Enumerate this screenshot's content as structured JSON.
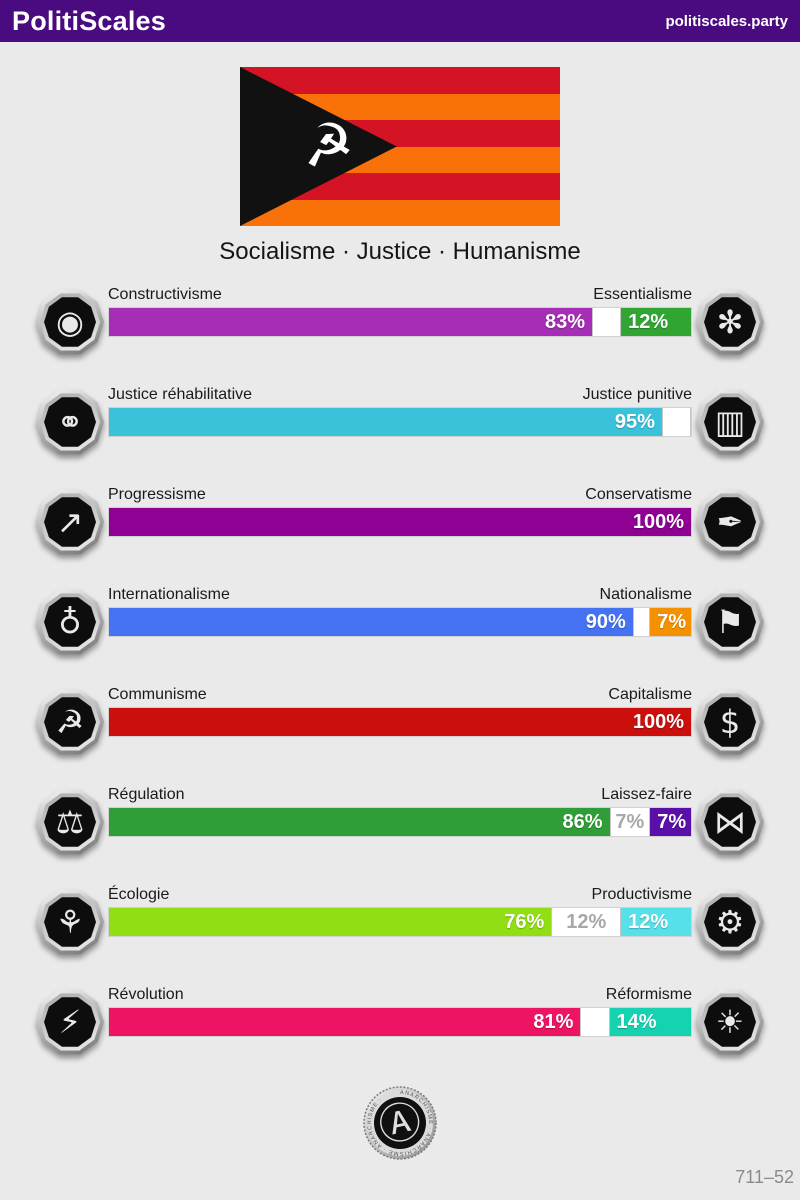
{
  "page": {
    "background": "#eaeaea"
  },
  "header": {
    "title": "PolitiScales",
    "site": "politiscales.party",
    "background": "#4a0a80"
  },
  "flag": {
    "stripes": [
      "#d41425",
      "#f87109",
      "#d41425",
      "#f87109",
      "#d41425",
      "#f87109"
    ],
    "triangle_color": "#111111",
    "emblem": "hammer-and-sickle",
    "emblem_glyph": "☭"
  },
  "subtitle": "Socialisme · Justice · Humanisme",
  "axes": [
    {
      "left_label": "Constructivisme",
      "right_label": "Essentialisme",
      "left_icon": "constructivism",
      "right_icon": "essentialism",
      "left_glyph": "◉",
      "right_glyph": "✻",
      "segments": [
        {
          "kind": "left",
          "pct": 83,
          "label": "83%",
          "color": "#a62db5"
        },
        {
          "kind": "neutral",
          "pct": 5,
          "label": ""
        },
        {
          "kind": "right",
          "pct": 12,
          "label": "12%",
          "color": "#31a532"
        }
      ]
    },
    {
      "left_label": "Justice réhabilitative",
      "right_label": "Justice punitive",
      "left_icon": "handshake",
      "right_icon": "prison-bars",
      "left_glyph": "⚭",
      "right_glyph": "▥",
      "segments": [
        {
          "kind": "left",
          "pct": 95,
          "label": "95%",
          "color": "#3bc2db"
        },
        {
          "kind": "neutral",
          "pct": 5,
          "label": ""
        }
      ]
    },
    {
      "left_label": "Progressisme",
      "right_label": "Conservatisme",
      "left_icon": "progress-wave",
      "right_icon": "fountain-pen",
      "left_glyph": "↗",
      "right_glyph": "✒",
      "segments": [
        {
          "kind": "left",
          "pct": 100,
          "label": "100%",
          "color": "#8e0192"
        }
      ]
    },
    {
      "left_label": "Internationalisme",
      "right_label": "Nationalisme",
      "left_icon": "globe-laurel",
      "right_icon": "waving-flag",
      "left_glyph": "♁",
      "right_glyph": "⚑",
      "segments": [
        {
          "kind": "left",
          "pct": 90,
          "label": "90%",
          "color": "#4472f2"
        },
        {
          "kind": "neutral",
          "pct": 3,
          "label": ""
        },
        {
          "kind": "right",
          "pct": 7,
          "label": "7%",
          "color": "#f59000"
        }
      ]
    },
    {
      "left_label": "Communisme",
      "right_label": "Capitalisme",
      "left_icon": "hammer-sickle",
      "right_icon": "money-bag",
      "left_glyph": "☭",
      "right_glyph": "$",
      "segments": [
        {
          "kind": "left",
          "pct": 100,
          "label": "100%",
          "color": "#ca0f0d"
        }
      ]
    },
    {
      "left_label": "Régulation",
      "right_label": "Laissez-faire",
      "left_icon": "ruler-square",
      "right_icon": "butterfly",
      "left_glyph": "⚖",
      "right_glyph": "⋈",
      "segments": [
        {
          "kind": "left",
          "pct": 86,
          "label": "86%",
          "color": "#2f9e38"
        },
        {
          "kind": "neutral",
          "pct": 7,
          "label": "7%"
        },
        {
          "kind": "right",
          "pct": 7,
          "label": "7%",
          "color": "#5a0fa8"
        }
      ]
    },
    {
      "left_label": "Écologie",
      "right_label": "Productivisme",
      "left_icon": "sprouting-plant",
      "right_icon": "gears",
      "left_glyph": "⚘",
      "right_glyph": "⚙",
      "segments": [
        {
          "kind": "left",
          "pct": 76,
          "label": "76%",
          "color": "#90de13"
        },
        {
          "kind": "neutral",
          "pct": 12,
          "label": "12%"
        },
        {
          "kind": "right",
          "pct": 12,
          "label": "12%",
          "color": "#56e0e9"
        }
      ]
    },
    {
      "left_label": "Révolution",
      "right_label": "Réformisme",
      "left_icon": "raised-fist",
      "right_icon": "landscape",
      "left_glyph": "⚡",
      "right_glyph": "☀",
      "segments": [
        {
          "kind": "left",
          "pct": 81,
          "label": "81%",
          "color": "#ed1464"
        },
        {
          "kind": "neutral",
          "pct": 5,
          "label": ""
        },
        {
          "kind": "right",
          "pct": 14,
          "label": "14%",
          "color": "#15d3b0"
        }
      ]
    }
  ],
  "footer": {
    "seal_rim_text": "ANARCHISME · ANARCHISME · ANARCHISME ·",
    "seal_glyph": "Ⓐ",
    "code": "711–52"
  }
}
